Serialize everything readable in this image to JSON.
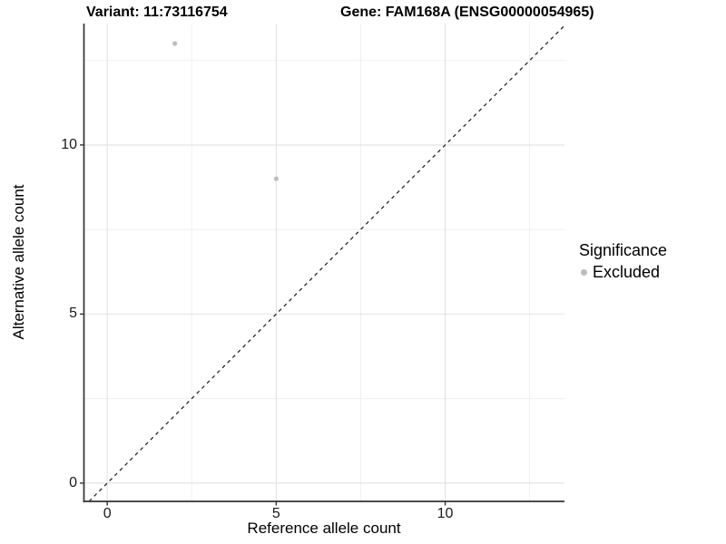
{
  "chart_data": {
    "type": "scatter",
    "title_left": "Variant: 11:73116754",
    "title_right": "Gene: FAM168A (ENSG00000054965)",
    "xlabel": "Reference allele count",
    "ylabel": "Alternative allele count",
    "xlim": [
      -0.69,
      13.53
    ],
    "ylim": [
      -0.54,
      13.59
    ],
    "x_ticks": [
      0,
      5,
      10
    ],
    "y_ticks": [
      0,
      5,
      10
    ],
    "x_minor_ticks": [
      2.5,
      7.5,
      12.5
    ],
    "y_minor_ticks": [
      2.5,
      7.5,
      12.5
    ],
    "grid": "major+minor",
    "identity_line": {
      "type": "y=x",
      "style": "dashed"
    },
    "series": [
      {
        "name": "Excluded",
        "color": "#bdbdbd",
        "points": [
          {
            "x": 2,
            "y": 13
          },
          {
            "x": 5,
            "y": 9
          }
        ]
      }
    ],
    "legend": {
      "title": "Significance",
      "position": "right",
      "items": [
        {
          "label": "Excluded",
          "color": "#bdbdbd"
        }
      ]
    },
    "theme": {
      "background": "#ffffff",
      "grid_major": "#e2e2e2",
      "grid_minor": "#efefef",
      "axis_line": "#333333",
      "tick_mark": "#333333",
      "tick_text": "#1a1a1a",
      "identity_line_color": "#1a1a1a",
      "title_text": "#000000"
    }
  }
}
